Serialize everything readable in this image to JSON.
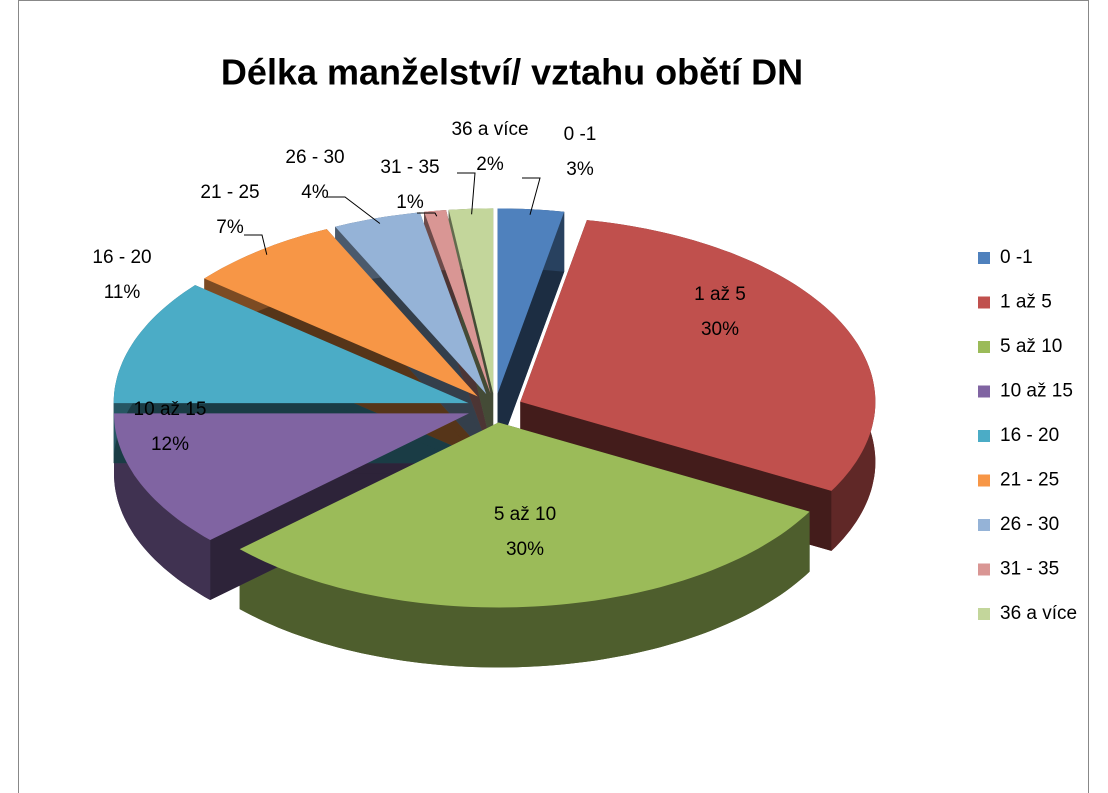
{
  "chart_data": {
    "type": "pie3d",
    "title": "Délka manželství/ vztahu obětí DN",
    "categories": [
      "0 -1",
      "1 až 5",
      "5 až 10",
      "10 až 15",
      "16 - 20",
      "21 - 25",
      "26 - 30",
      "31 - 35",
      "36 a více"
    ],
    "values": [
      3,
      30,
      30,
      12,
      11,
      7,
      4,
      1,
      2
    ],
    "value_labels": [
      "3%",
      "30%",
      "30%",
      "12%",
      "11%",
      "7%",
      "4%",
      "1%",
      "2%"
    ],
    "colors": [
      "#4f81bd",
      "#c0504d",
      "#9bbb59",
      "#8064a2",
      "#4bacc6",
      "#f79646",
      "#95b3d7",
      "#d99694",
      "#c3d69b"
    ],
    "legend": "right"
  }
}
